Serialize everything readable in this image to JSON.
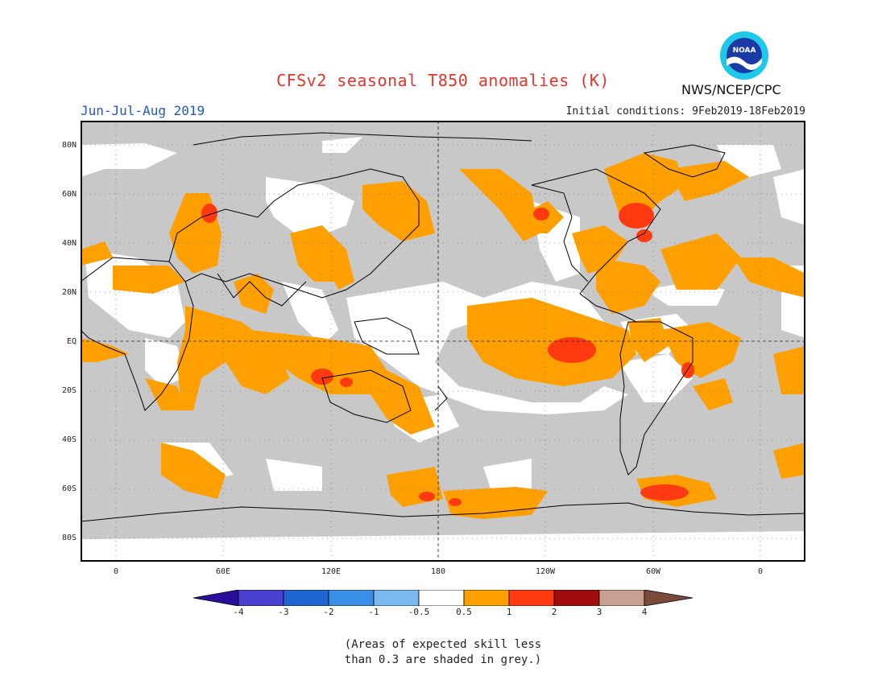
{
  "title": "CFSv2 seasonal T850 anomalies (K)",
  "season": "Jun-Jul-Aug 2019",
  "initial_conditions": "Initial conditions: 9Feb2019-18Feb2019",
  "agency": "NWS/NCEP/CPC",
  "logo_text": "NOAA",
  "lat_labels": [
    "80N",
    "60N",
    "40N",
    "20N",
    "EQ",
    "20S",
    "40S",
    "60S",
    "80S"
  ],
  "lon_labels": [
    "0",
    "60E",
    "120E",
    "180",
    "120W",
    "60W",
    "0"
  ],
  "colorbar": {
    "labels": [
      "-4",
      "-3",
      "-2",
      "-1",
      "-0.5",
      "0.5",
      "1",
      "2",
      "3",
      "4"
    ],
    "colors": [
      "#2a0e9c",
      "#4a3fd0",
      "#1f66d2",
      "#3c8fe6",
      "#7ab8f0",
      "#ffffff",
      "#ff9f00",
      "#ff3a10",
      "#a00c0c",
      "#c8a090",
      "#7a4a3a"
    ]
  },
  "skill_note_line1": "(Areas of expected skill less",
  "skill_note_line2": "than 0.3 are shaded in grey.)",
  "colors": {
    "grey": "#c8c8c8",
    "orange": "#ff9f00",
    "red": "#ff3a10"
  }
}
